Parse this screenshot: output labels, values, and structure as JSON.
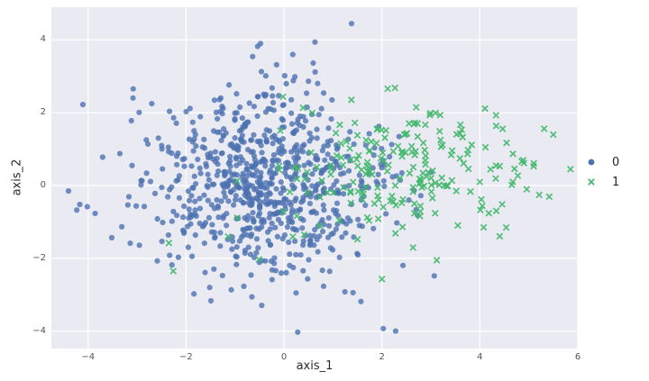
{
  "chart_data": {
    "type": "scatter",
    "title": "",
    "xlabel": "axis_1",
    "ylabel": "axis_2",
    "xlim": [
      -4.75,
      6.0
    ],
    "ylim": [
      -4.48,
      4.9
    ],
    "xticks": [
      {
        "v": -4,
        "label": "−4"
      },
      {
        "v": -2,
        "label": "−2"
      },
      {
        "v": 0,
        "label": "0"
      },
      {
        "v": 2,
        "label": "2"
      },
      {
        "v": 4,
        "label": "4"
      },
      {
        "v": 6,
        "label": "6"
      }
    ],
    "yticks": [
      {
        "v": -4,
        "label": "−4"
      },
      {
        "v": -2,
        "label": "−2"
      },
      {
        "v": 0,
        "label": "0"
      },
      {
        "v": 2,
        "label": "2"
      },
      {
        "v": 4,
        "label": "4"
      }
    ],
    "grid": true,
    "plot_bg_color": "#eaeaf2",
    "grid_color": "#ffffff",
    "tick_text_color": "#555555",
    "axis_text_color": "#2b2b2b",
    "legend_position": "center-right outside axes",
    "series": [
      {
        "label": "0",
        "marker": "circle",
        "color": "#4c72b0",
        "opacity": 0.8,
        "marker_radius_px": 3.1,
        "distribution": {
          "kind": "gaussian",
          "n": 800,
          "mean": [
            -0.4,
            0.0
          ],
          "std": [
            1.2,
            1.3
          ],
          "seed": 12345
        },
        "anchor_points": [
          [
            -4.4,
            -0.15
          ],
          [
            -4.17,
            -0.52
          ],
          [
            1.38,
            4.45
          ],
          [
            -0.48,
            3.9
          ],
          [
            0.18,
            3.6
          ],
          [
            0.28,
            -4.03
          ],
          [
            2.28,
            -4.0
          ],
          [
            -2.7,
            2.25
          ],
          [
            2.55,
            -0.4
          ]
        ]
      },
      {
        "label": "1",
        "marker": "x",
        "color": "#41b86c",
        "opacity": 0.9,
        "marker_halfsize_px": 3.2,
        "distribution": {
          "kind": "gaussian",
          "n": 215,
          "mean": [
            2.5,
            0.5
          ],
          "std": [
            1.3,
            0.9
          ],
          "seed": 777
        },
        "anchor_points": [
          [
            -2.26,
            -2.35
          ],
          [
            -2.35,
            -1.58
          ],
          [
            5.85,
            0.45
          ],
          [
            5.5,
            1.4
          ],
          [
            2.0,
            -2.57
          ],
          [
            4.33,
            1.93
          ],
          [
            2.7,
            2.15
          ],
          [
            -0.51,
            -2.03
          ]
        ]
      }
    ]
  }
}
